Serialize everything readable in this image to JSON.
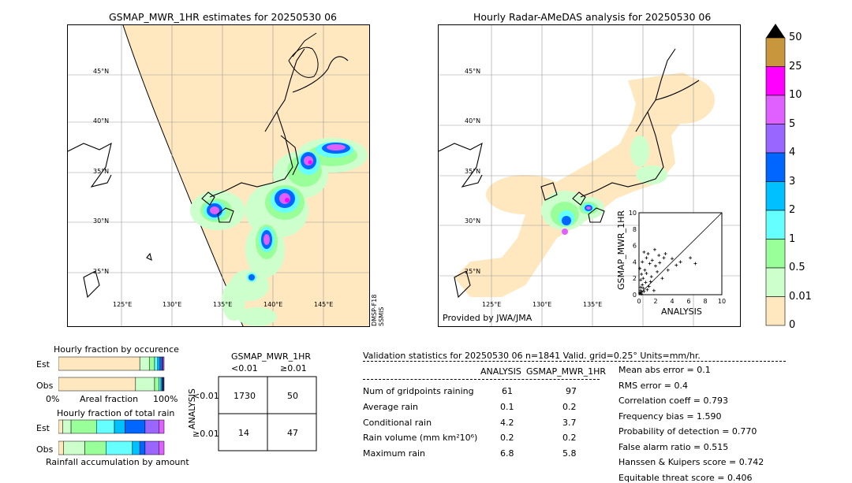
{
  "left_map": {
    "title": "GSMAP_MWR_1HR estimates for 20250530 06",
    "lat_labels": [
      "45°N",
      "40°N",
      "35°N",
      "30°N",
      "25°N"
    ],
    "lon_labels": [
      "125°E",
      "130°E",
      "135°E",
      "140°E",
      "145°E"
    ],
    "sensor_label": "DMSP-F18\nSSMIS"
  },
  "right_map": {
    "title": "Hourly Radar-AMeDAS analysis for 20250530 06",
    "lat_labels": [
      "45°N",
      "40°N",
      "35°N",
      "30°N",
      "25°N"
    ],
    "lon_labels": [
      "125°E",
      "130°E",
      "135°E"
    ],
    "credit": "Provided by JWA/JMA"
  },
  "colorbar": {
    "labels": [
      "50",
      "25",
      "10",
      "5",
      "4",
      "3",
      "2",
      "1",
      "0.5",
      "0.01",
      "0"
    ],
    "colors": [
      "#c8963c",
      "#ff00ff",
      "#e060ff",
      "#9966ff",
      "#0066ff",
      "#00c0ff",
      "#66ffff",
      "#99ff99",
      "#ccffcc",
      "#ffe8c0"
    ]
  },
  "chart_data": [
    {
      "type": "scatter",
      "xlabel": "ANALYSIS",
      "ylabel": "GSMAP_MWR_1HR",
      "xlim": [
        0,
        10
      ],
      "ylim": [
        0,
        10
      ],
      "xticks": [
        "0",
        "2",
        "4",
        "6",
        "8",
        "10"
      ],
      "yticks": [
        "0",
        "2",
        "4",
        "6",
        "8",
        "10"
      ],
      "points": [
        [
          0.1,
          0.2
        ],
        [
          0.2,
          0.5
        ],
        [
          0.3,
          0.1
        ],
        [
          0.5,
          0.8
        ],
        [
          0.4,
          1.2
        ],
        [
          0.6,
          0.4
        ],
        [
          0.8,
          1.5
        ],
        [
          1.0,
          0.6
        ],
        [
          0.2,
          1.8
        ],
        [
          0.3,
          2.5
        ],
        [
          0.5,
          2.0
        ],
        [
          0.7,
          3.0
        ],
        [
          1.2,
          1.0
        ],
        [
          1.5,
          2.2
        ],
        [
          1.8,
          0.5
        ],
        [
          2.0,
          3.5
        ],
        [
          0.1,
          3.2
        ],
        [
          0.4,
          4.0
        ],
        [
          0.9,
          4.5
        ],
        [
          1.3,
          3.8
        ],
        [
          1.6,
          4.2
        ],
        [
          2.2,
          2.8
        ],
        [
          2.5,
          3.9
        ],
        [
          3.0,
          4.5
        ],
        [
          2.8,
          2.0
        ],
        [
          3.5,
          3.0
        ],
        [
          4.0,
          4.4
        ],
        [
          4.5,
          3.6
        ],
        [
          5.0,
          4.0
        ],
        [
          6.8,
          3.8
        ],
        [
          6.2,
          4.5
        ],
        [
          1.1,
          5.0
        ],
        [
          1.9,
          5.5
        ],
        [
          2.4,
          4.8
        ],
        [
          0.6,
          5.2
        ],
        [
          3.2,
          5.0
        ],
        [
          0.2,
          0.9
        ],
        [
          0.9,
          2.6
        ],
        [
          1.4,
          1.6
        ],
        [
          0.3,
          0.3
        ]
      ]
    },
    {
      "type": "bar",
      "title": "Hourly fraction by occurence",
      "categories": [
        "Est",
        "Obs"
      ],
      "xlabel_left": "0%",
      "xlabel_center": "Areal fraction",
      "xlabel_right": "100%",
      "series_colors": [
        "#ffe8c0",
        "#ccffcc",
        "#99ff99",
        "#66ffff",
        "#00c0ff",
        "#0066ff",
        "#9966ff",
        "#e060ff"
      ],
      "values": [
        [
          0.77,
          0.09,
          0.05,
          0.03,
          0.02,
          0.02,
          0.01,
          0.01
        ],
        [
          0.73,
          0.18,
          0.04,
          0.02,
          0.01,
          0.01,
          0.005,
          0.005
        ]
      ]
    },
    {
      "type": "bar",
      "title": "Hourly fraction of total rain",
      "categories": [
        "Est",
        "Obs"
      ],
      "xlabel_center": "Rainfall accumulation by amount",
      "series_colors": [
        "#ffe8c0",
        "#ccffcc",
        "#99ff99",
        "#66ffff",
        "#00c0ff",
        "#0066ff",
        "#9966ff",
        "#e060ff"
      ],
      "values": [
        [
          0.04,
          0.08,
          0.24,
          0.17,
          0.1,
          0.19,
          0.13,
          0.05
        ],
        [
          0.05,
          0.2,
          0.2,
          0.25,
          0.07,
          0.05,
          0.13,
          0.05
        ]
      ]
    }
  ],
  "contingency": {
    "title": "GSMAP_MWR_1HR",
    "col_labels": [
      "<0.01",
      "≥0.01"
    ],
    "row_labels": [
      "<0.01",
      "≥0.01"
    ],
    "side_label": "ANALYSIS",
    "cells": [
      [
        "1730",
        "50"
      ],
      [
        "14",
        "47"
      ]
    ]
  },
  "validation": {
    "header": "Validation statistics for 20250530 06  n=1841 Valid. grid=0.25° Units=mm/hr.",
    "col_analysis": "ANALYSIS",
    "col_gsmap": "GSMAP_MWR_1HR",
    "rows": [
      {
        "label": "Num of gridpoints raining",
        "a": "61",
        "g": "97"
      },
      {
        "label": "Average rain",
        "a": "0.1",
        "g": "0.2"
      },
      {
        "label": "Conditional rain",
        "a": "4.2",
        "g": "3.7"
      },
      {
        "label": "Rain volume (mm km²10⁶)",
        "a": "0.2",
        "g": "0.2"
      },
      {
        "label": "Maximum rain",
        "a": "6.8",
        "g": "5.8"
      }
    ],
    "scores": [
      "Mean abs error =    0.1",
      "RMS error =    0.4",
      "Correlation coeff =  0.793",
      "Frequency bias =  1.590",
      "Probability of detection =  0.770",
      "False alarm ratio =  0.515",
      "Hanssen & Kuipers score =  0.742",
      "Equitable threat score =  0.406"
    ]
  }
}
